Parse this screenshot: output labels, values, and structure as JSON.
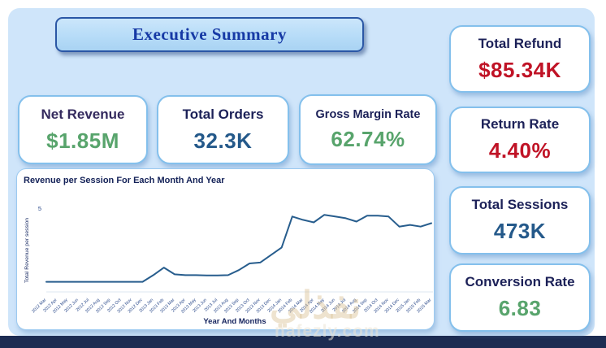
{
  "page": {
    "banner_title": "Executive Summary",
    "watermark_arabic": "نفذلي",
    "watermark_domain": "nafezly.com"
  },
  "kpis": {
    "net_revenue": {
      "label": "Net Revenue",
      "value": "$1.85M"
    },
    "total_orders": {
      "label": "Total Orders",
      "value": "32.3K"
    },
    "gross_margin": {
      "label": "Gross Margin Rate",
      "value": "62.74%"
    },
    "total_refund": {
      "label": "Total Refund",
      "value": "$85.34K"
    },
    "return_rate": {
      "label": "Return Rate",
      "value": "4.40%"
    },
    "total_sessions": {
      "label": "Total Sessions",
      "value": "473K"
    },
    "conversion_rate": {
      "label": "Conversion Rate",
      "value": "6.83"
    }
  },
  "chart_data": {
    "type": "line",
    "title": "Revenue per Session For Each Month And Year",
    "xlabel": "Year And Months",
    "ylabel": "Total Revenue per session",
    "ylim": [
      0,
      5
    ],
    "y_ticks": [
      "5"
    ],
    "grid": false,
    "legend": "none",
    "line_color": "#275d8d",
    "categories": [
      "2012 Mar",
      "2012 Apr",
      "2012 May",
      "2012 Jun",
      "2012 Jul",
      "2012 Aug",
      "2012 Sep",
      "2012 Oct",
      "2012 Nov",
      "2012 Dec",
      "2013 Jan",
      "2013 Feb",
      "2013 Mar",
      "2013 Apr",
      "2013 May",
      "2013 Jun",
      "2013 Jul",
      "2013 Aug",
      "2013 Sep",
      "2013 Oct",
      "2013 Nov",
      "2013 Dec",
      "2014 Jan",
      "2014 Feb",
      "2014 Mar",
      "2014 Apr",
      "2014 May",
      "2014 Jun",
      "2014 Jul",
      "2014 Aug",
      "2014 Sep",
      "2014 Oct",
      "2014 Nov",
      "2014 Dec",
      "2015 Jan",
      "2015 Feb",
      "2015 Mar"
    ],
    "values": [
      0.6,
      0.6,
      0.6,
      0.6,
      0.6,
      0.6,
      0.6,
      0.6,
      0.6,
      0.6,
      1.0,
      1.45,
      1.05,
      1.0,
      1.0,
      0.98,
      0.98,
      1.0,
      1.3,
      1.7,
      1.75,
      2.2,
      2.65,
      4.5,
      4.3,
      4.15,
      4.6,
      4.5,
      4.4,
      4.2,
      4.55,
      4.55,
      4.5,
      3.9,
      4.0,
      3.9,
      4.1
    ]
  },
  "colors": {
    "panel_bg": "#cfe5fa",
    "card_border": "#84c0ec",
    "bottom_strip": "#1d2c52",
    "value_green": "#58a46c",
    "value_blue": "#24598a",
    "value_red": "#c01326",
    "banner_text": "#1639a5",
    "line": "#275d8d"
  }
}
